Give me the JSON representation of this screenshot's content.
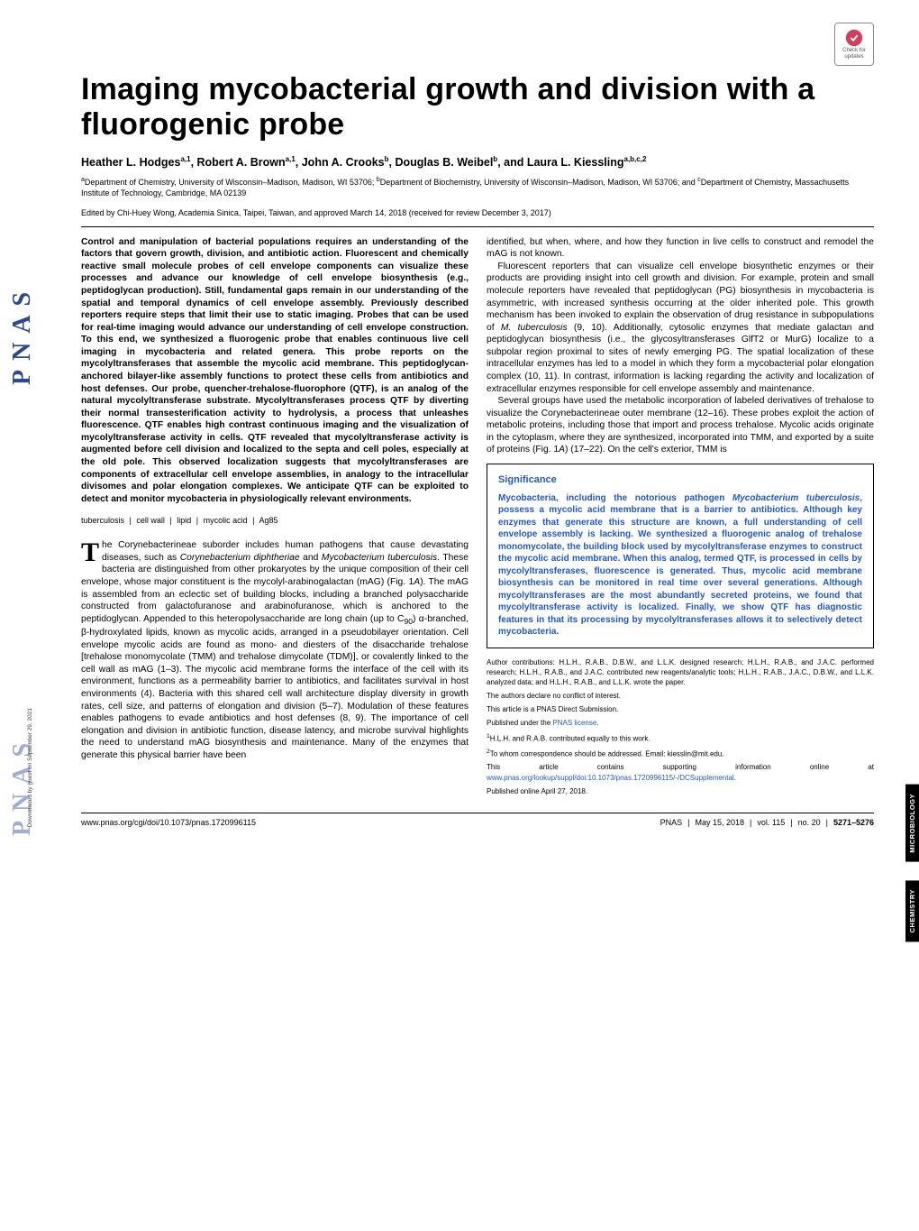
{
  "journal_side": "PNAS",
  "check_updates_label": "Check for updates",
  "title": "Imaging mycobacterial growth and division with a fluorogenic probe",
  "authors_html": "Heather L. Hodges<sup>a,1</sup>, Robert A. Brown<sup>a,1</sup>, John A. Crooks<sup>b</sup>, Douglas B. Weibel<sup>b</sup>, and Laura L. Kiessling<sup>a,b,c,2</sup>",
  "affiliations_html": "<sup>a</sup>Department of Chemistry, University of Wisconsin–Madison, Madison, WI 53706; <sup>b</sup>Department of Biochemistry, University of Wisconsin–Madison, Madison, WI 53706; and <sup>c</sup>Department of Chemistry, Massachusetts Institute of Technology, Cambridge, MA 02139",
  "editor_line": "Edited by Chi-Huey Wong, Academia Sinica, Taipei, Taiwan, and approved March 14, 2018 (received for review December 3, 2017)",
  "abstract": "Control and manipulation of bacterial populations requires an understanding of the factors that govern growth, division, and antibiotic action. Fluorescent and chemically reactive small molecule probes of cell envelope components can visualize these processes and advance our knowledge of cell envelope biosynthesis (e.g., peptidoglycan production). Still, fundamental gaps remain in our understanding of the spatial and temporal dynamics of cell envelope assembly. Previously described reporters require steps that limit their use to static imaging. Probes that can be used for real-time imaging would advance our understanding of cell envelope construction. To this end, we synthesized a fluorogenic probe that enables continuous live cell imaging in mycobacteria and related genera. This probe reports on the mycolyltransferases that assemble the mycolic acid membrane. This peptidoglycan-anchored bilayer-like assembly functions to protect these cells from antibiotics and host defenses. Our probe, quencher-trehalose-fluorophore (QTF), is an analog of the natural mycolyltransferase substrate. Mycolyltransferases process QTF by diverting their normal transesterification activity to hydrolysis, a process that unleashes fluorescence. QTF enables high contrast continuous imaging and the visualization of mycolyltransferase activity in cells. QTF revealed that mycolyltransferase activity is augmented before cell division and localized to the septa and cell poles, especially at the old pole. This observed localization suggests that mycolyltransferases are components of extracellular cell envelope assemblies, in analogy to the intracellular divisomes and polar elongation complexes. We anticipate QTF can be exploited to detect and monitor mycobacteria in physiologically relevant environments.",
  "keywords": [
    "tuberculosis",
    "cell wall",
    "lipid",
    "mycolic acid",
    "Ag85"
  ],
  "col1_body": {
    "first_para_dropcap": "T",
    "first_para_rest": "he Corynebacterineae suborder includes human pathogens that cause devastating diseases, such as <i>Corynebacterium diphtheriae</i> and <i>Mycobacterium tuberculosis</i>. These bacteria are distinguished from other prokaryotes by the unique composition of their cell envelope, whose major constituent is the mycolyl-arabinogalactan (mAG) (Fig. 1<i>A</i>). The mAG is assembled from an eclectic set of building blocks, including a branched polysaccharide constructed from galactofuranose and arabinofuranose, which is anchored to the peptidoglycan. Appended to this heteropolysaccharide are long chain (up to C<sub>90</sub>) α-branched, β-hydroxylated lipids, known as mycolic acids, arranged in a pseudobilayer orientation. Cell envelope mycolic acids are found as mono- and diesters of the disaccharide trehalose [trehalose monomycolate (TMM) and trehalose dimycolate (TDM)], or covalently linked to the cell wall as mAG (1–3). The mycolic acid membrane forms the interface of the cell with its environment, functions as a permeability barrier to antibiotics, and facilitates survival in host environments (4). Bacteria with this shared cell wall architecture display diversity in growth rates, cell size, and patterns of elongation and division (5–7). Modulation of these features enables pathogens to evade antibiotics and host defenses (8, 9). The importance of cell elongation and division in antibiotic function, disease latency, and microbe survival highlights the need to understand mAG biosynthesis and maintenance. Many of the enzymes that generate this physical barrier have been"
  },
  "col2_body": {
    "p1": "identified, but when, where, and how they function in live cells to construct and remodel the mAG is not known.",
    "p2": "Fluorescent reporters that can visualize cell envelope biosynthetic enzymes or their products are providing insight into cell growth and division. For example, protein and small molecule reporters have revealed that peptidoglycan (PG) biosynthesis in mycobacteria is asymmetric, with increased synthesis occurring at the older inherited pole. This growth mechanism has been invoked to explain the observation of drug resistance in subpopulations of <i>M. tuberculosis</i> (9, 10). Additionally, cytosolic enzymes that mediate galactan and peptidoglycan biosynthesis (i.e., the glycosyltransferases GlfT2 or MurG) localize to a subpolar region proximal to sites of newly emerging PG. The spatial localization of these intracellular enzymes has led to a model in which they form a mycobacterial polar elongation complex (10, 11). In contrast, information is lacking regarding the activity and localization of extracellular enzymes responsible for cell envelope assembly and maintenance.",
    "p3": "Several groups have used the metabolic incorporation of labeled derivatives of trehalose to visualize the Corynebacterineae outer membrane (12–16). These probes exploit the action of metabolic proteins, including those that import and process trehalose. Mycolic acids originate in the cytoplasm, where they are synthesized, incorporated into TMM, and exported by a suite of proteins (Fig. 1<i>A</i>) (17–22). On the cell's exterior, TMM is"
  },
  "significance": {
    "title": "Significance",
    "body": "Mycobacteria, including the notorious pathogen <i>Mycobacterium tuberculosis</i>, possess a mycolic acid membrane that is a barrier to antibiotics. Although key enzymes that generate this structure are known, a full understanding of cell envelope assembly is lacking. We synthesized a fluorogenic analog of trehalose monomycolate, the building block used by mycolyltransferase enzymes to construct the mycolic acid membrane. When this analog, termed QTF, is processed in cells by mycolyltransferases, fluorescence is generated. Thus, mycolic acid membrane biosynthesis can be monitored in real time over several generations. Although mycolyltransferases are the most abundantly secreted proteins, we found that mycolyltransferase activity is localized. Finally, we show QTF has diagnostic features in that its processing by mycolyltransferases allows it to selectively detect mycobacteria."
  },
  "footnotes": {
    "contrib": "Author contributions: H.L.H., R.A.B., D.B.W., and L.L.K. designed research; H.L.H., R.A.B., and J.A.C. performed research; H.L.H., R.A.B., and J.A.C. contributed new reagents/analytic tools; H.L.H., R.A.B., J.A.C., D.B.W., and L.L.K. analyzed data; and H.L.H., R.A.B., and L.L.K. wrote the paper.",
    "conflict": "The authors declare no conflict of interest.",
    "direct": "This article is a PNAS Direct Submission.",
    "license_pre": "Published under the ",
    "license_link": "PNAS license",
    "license_post": ".",
    "note1": "H.L.H. and R.A.B. contributed equally to this work.",
    "note2": "To whom correspondence should be addressed. Email: kiesslin@mit.edu.",
    "si_pre": "This article contains supporting information online at ",
    "si_link": "www.pnas.org/lookup/suppl/doi:10.1073/pnas.1720996115/-/DCSupplemental",
    "si_post": ".",
    "pubdate": "Published online April 27, 2018."
  },
  "footer": {
    "doi": "www.pnas.org/cgi/doi/10.1073/pnas.1720996115",
    "journal": "PNAS",
    "date": "May 15, 2018",
    "vol": "vol. 115",
    "no": "no. 20",
    "pages": "5271–5276"
  },
  "side_tabs": [
    "MICROBIOLOGY",
    "CHEMISTRY"
  ],
  "downloaded": "Downloaded by guest on September 29, 2021",
  "colors": {
    "link": "#2158c9",
    "pnas_blue": "#2e4a8a"
  }
}
